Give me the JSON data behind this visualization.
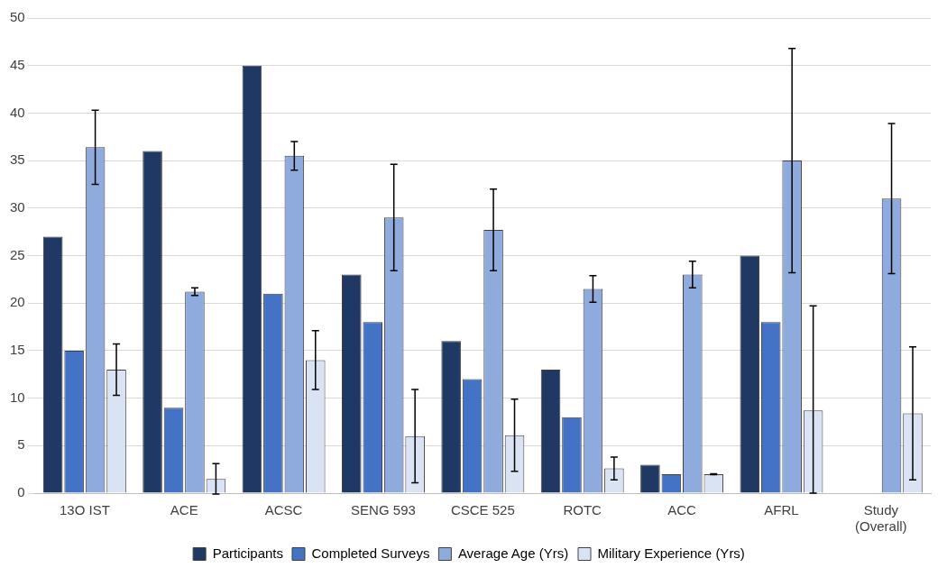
{
  "chart_data": {
    "type": "bar",
    "categories": [
      "13O IST",
      "ACE",
      "ACSC",
      "SENG 593",
      "CSCE 525",
      "ROTC",
      "ACC",
      "AFRL",
      "Study (Overall)"
    ],
    "series": [
      {
        "name": "Participants",
        "color": "#203864",
        "values": [
          27,
          36,
          45,
          23,
          16,
          13,
          3,
          25,
          null
        ]
      },
      {
        "name": "Completed Surveys",
        "color": "#4472c4",
        "values": [
          15,
          9,
          21,
          18,
          12,
          8,
          2,
          18,
          null
        ]
      },
      {
        "name": "Average Age (Yrs)",
        "color": "#8faadc",
        "values": [
          36.4,
          21.2,
          35.5,
          29,
          27.7,
          21.5,
          23,
          35,
          31
        ],
        "errors": [
          3.9,
          0.4,
          1.5,
          5.6,
          4.3,
          1.4,
          1.4,
          11.8,
          7.9
        ]
      },
      {
        "name": "Military Experience (Yrs)",
        "color": "#dae3f3",
        "values": [
          13,
          1.5,
          14,
          6,
          6.1,
          2.6,
          2,
          8.7,
          8.4
        ],
        "errors": [
          2.7,
          1.6,
          3.1,
          4.9,
          3.8,
          1.2,
          0.05,
          [
            0,
            19.7
          ],
          7
        ]
      }
    ],
    "ylim": [
      0,
      50
    ],
    "yticks": [
      0,
      5,
      10,
      15,
      20,
      25,
      30,
      35,
      40,
      45,
      50
    ],
    "grid": "y",
    "legend": "bottom"
  }
}
